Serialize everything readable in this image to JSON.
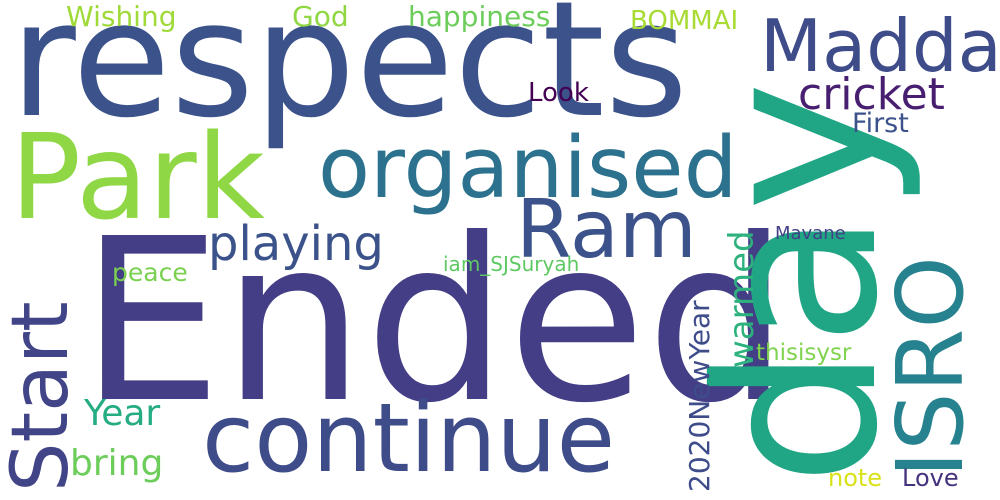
{
  "words": [
    {
      "text": "respects",
      "color": "#3b528b"
    },
    {
      "text": "Ended",
      "color": "#433e85"
    },
    {
      "text": "day",
      "color": "#21a685"
    },
    {
      "text": "Park",
      "color": "#8fd744"
    },
    {
      "text": "organised",
      "color": "#2c728e"
    },
    {
      "text": "Madda",
      "color": "#3e4c8a"
    },
    {
      "text": "Ram",
      "color": "#3b528b"
    },
    {
      "text": "continue",
      "color": "#3e4c8a"
    },
    {
      "text": "ISRO",
      "color": "#26828e"
    },
    {
      "text": "Start",
      "color": "#414487"
    },
    {
      "text": "playing",
      "color": "#3b528b"
    },
    {
      "text": "cricket",
      "color": "#481f70"
    },
    {
      "text": "Wishing",
      "color": "#a0da39"
    },
    {
      "text": "God",
      "color": "#90d743"
    },
    {
      "text": "happiness",
      "color": "#6ccd5a"
    },
    {
      "text": "BOMMAI",
      "color": "#a8db34"
    },
    {
      "text": "Look",
      "color": "#440154"
    },
    {
      "text": "First",
      "color": "#3b528b"
    },
    {
      "text": "warmed",
      "color": "#2db27d"
    },
    {
      "text": "Mavane",
      "color": "#424086"
    },
    {
      "text": "peace",
      "color": "#7ad151"
    },
    {
      "text": "iam_SJSuryah",
      "color": "#5ec962"
    },
    {
      "text": "Year",
      "color": "#25ac82"
    },
    {
      "text": "bring",
      "color": "#6ccd5a"
    },
    {
      "text": "2020NewYear",
      "color": "#3e4c8a"
    },
    {
      "text": "thisisysr",
      "color": "#7fd34e"
    },
    {
      "text": "note",
      "color": "#d8e219"
    },
    {
      "text": "Love",
      "color": "#46337e"
    }
  ]
}
